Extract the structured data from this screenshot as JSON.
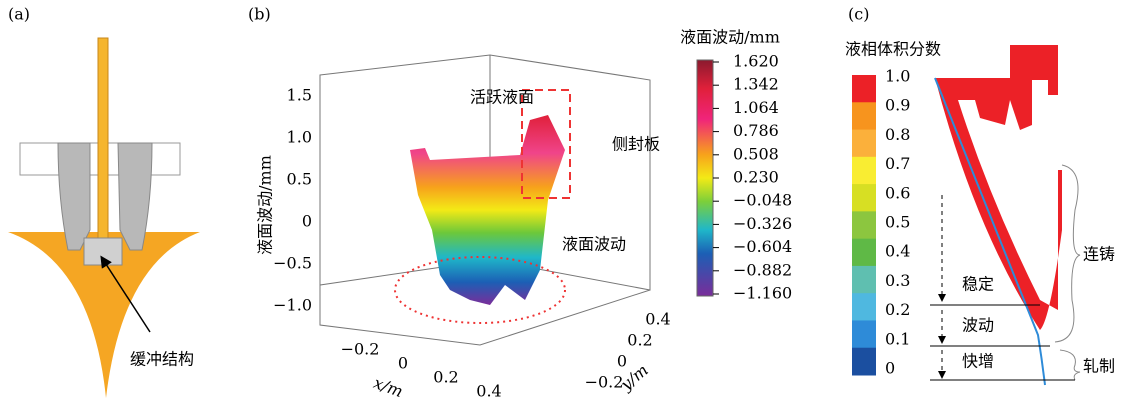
{
  "panels": {
    "a": {
      "label": "(a)",
      "annotation": "缓冲结构"
    },
    "b": {
      "label": "(b)",
      "colorbar_title": "液面波动/mm",
      "colorbar_ticks": [
        "1.620",
        "1.342",
        "1.064",
        "0.786",
        "0.508",
        "0.230",
        "−0.048",
        "−0.326",
        "−0.604",
        "−0.882",
        "−1.160"
      ],
      "z_axis_label": "液面波动/mm",
      "z_ticks": [
        "1.5",
        "1.0",
        "0.5",
        "0",
        "−0.5",
        "−1.0"
      ],
      "x_axis_label": "x/m",
      "x_ticks": [
        "−0.2",
        "0",
        "0.2",
        "0.4"
      ],
      "y_axis_label": "y/m",
      "y_ticks": [
        "0.4",
        "0.2",
        "0",
        "−0.2"
      ],
      "annotations": [
        "活跃液面",
        "侧封板",
        "液面波动"
      ]
    },
    "c": {
      "label": "(c)",
      "colorbar_title": "液相体积分数",
      "colorbar_ticks": [
        "1.0",
        "0.9",
        "0.8",
        "0.7",
        "0.6",
        "0.5",
        "0.4",
        "0.3",
        "0.2",
        "0.1",
        "0"
      ],
      "stages": [
        "稳定",
        "波动",
        "快增"
      ],
      "processes": [
        "连铸",
        "轧制"
      ]
    }
  }
}
